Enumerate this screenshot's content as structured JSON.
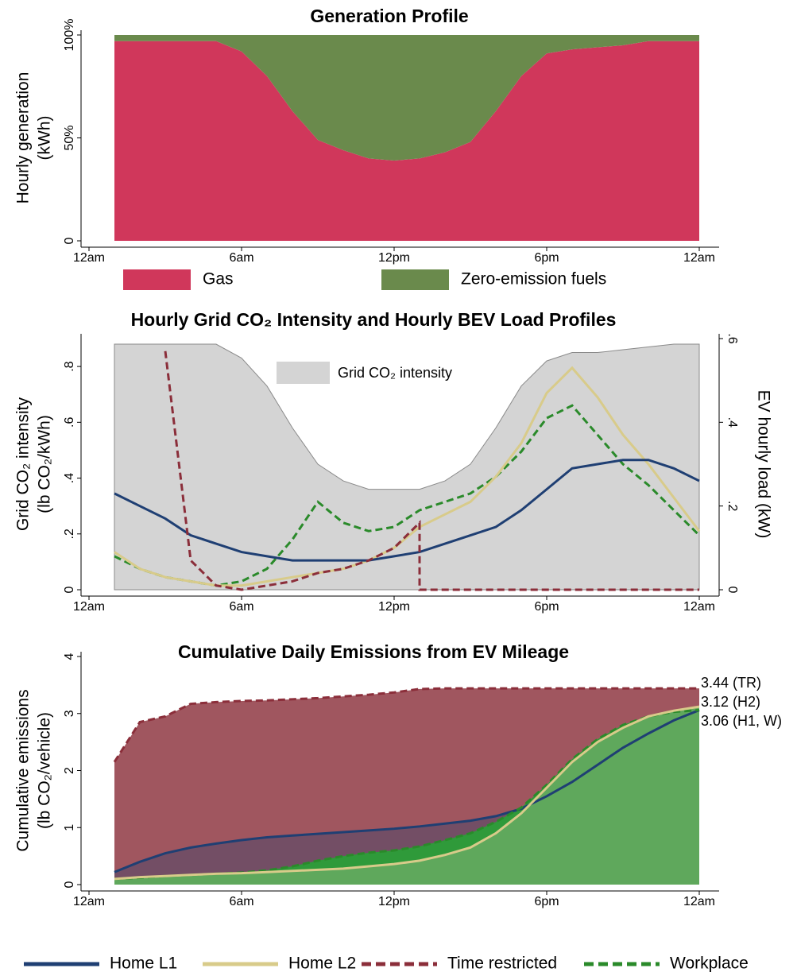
{
  "chart_data": [
    {
      "type": "area",
      "title": "Generation Profile",
      "y_label": [
        "Hourly generation",
        "(kWh)"
      ],
      "x": [
        1,
        2,
        3,
        4,
        5,
        6,
        7,
        8,
        9,
        10,
        11,
        12,
        13,
        14,
        15,
        16,
        17,
        18,
        19,
        20,
        21,
        22,
        23,
        24
      ],
      "xlim": [
        0,
        24
      ],
      "xticks": [
        {
          "value": 0,
          "label": "12am"
        },
        {
          "value": 6,
          "label": "6am"
        },
        {
          "value": 12,
          "label": "12pm"
        },
        {
          "value": 18,
          "label": "6pm"
        },
        {
          "value": 24,
          "label": "12am"
        }
      ],
      "ylim": [
        0,
        100
      ],
      "yticks": [
        0,
        {
          "value": 50,
          "label": "50%"
        },
        {
          "value": 100,
          "label": "100%"
        }
      ],
      "stacked": true,
      "legend": "bottom",
      "series": [
        {
          "name": "Gas",
          "color": "#d0375b",
          "values": [
            97,
            97,
            97,
            97,
            97,
            92,
            80,
            63,
            49,
            44,
            40,
            39,
            40,
            43,
            48,
            63,
            80,
            91,
            93,
            94,
            95,
            97,
            97,
            97
          ]
        },
        {
          "name": "Zero-emission fuels",
          "color": "#6a8a4c",
          "values": [
            3,
            3,
            3,
            3,
            3,
            8,
            20,
            37,
            51,
            56,
            60,
            61,
            60,
            57,
            52,
            37,
            20,
            9,
            7,
            6,
            5,
            3,
            3,
            3
          ]
        }
      ]
    },
    {
      "type": "line",
      "title": "Hourly Grid CO₂ Intensity and Hourly BEV Load Profiles",
      "y_label": [
        "Grid CO₂ intensity",
        "(lb CO₂/kWh)"
      ],
      "y2_label": "EV hourly load (kW)",
      "x": [
        1,
        2,
        3,
        4,
        5,
        6,
        7,
        8,
        9,
        10,
        11,
        12,
        13,
        14,
        15,
        16,
        17,
        18,
        19,
        20,
        21,
        22,
        23,
        24
      ],
      "xlim": [
        0,
        24
      ],
      "xticks": [
        {
          "value": 0,
          "label": "12am"
        },
        {
          "value": 6,
          "label": "6am"
        },
        {
          "value": 12,
          "label": "12pm"
        },
        {
          "value": 18,
          "label": "6pm"
        },
        {
          "value": 24,
          "label": "12am"
        }
      ],
      "ylim": [
        0,
        0.9
      ],
      "yticks": [
        0,
        {
          "value": 0.2,
          "label": ".2"
        },
        {
          "value": 0.4,
          "label": ".4"
        },
        {
          "value": 0.6,
          "label": ".6"
        },
        {
          "value": 0.8,
          "label": ".8"
        }
      ],
      "y2lim": [
        0,
        0.6
      ],
      "y2ticks": [
        0,
        {
          "value": 0.2,
          "label": ".2"
        },
        {
          "value": 0.4,
          "label": ".4"
        },
        {
          "value": 0.6,
          "label": ".6"
        }
      ],
      "legend": "top",
      "series": [
        {
          "name": "Grid CO₂ intensity",
          "style": "area",
          "color": "#d4d4d4",
          "values": [
            0.88,
            0.88,
            0.88,
            0.88,
            0.88,
            0.83,
            0.73,
            0.58,
            0.45,
            0.39,
            0.36,
            0.36,
            0.36,
            0.39,
            0.45,
            0.58,
            0.73,
            0.82,
            0.85,
            0.85,
            0.86,
            0.87,
            0.88,
            0.88
          ]
        },
        {
          "color": "#1f3f73",
          "axis": "y2",
          "values": [
            0.23,
            0.2,
            0.17,
            0.13,
            0.11,
            0.09,
            0.08,
            0.07,
            0.07,
            0.07,
            0.07,
            0.08,
            0.09,
            0.11,
            0.13,
            0.15,
            0.19,
            0.24,
            0.29,
            0.3,
            0.31,
            0.31,
            0.29,
            0.26
          ]
        },
        {
          "color": "#d8cb8a",
          "axis": "y2",
          "values": [
            0.09,
            0.05,
            0.03,
            0.02,
            0.01,
            0.01,
            0.02,
            0.03,
            0.04,
            0.05,
            0.07,
            0.1,
            0.15,
            0.18,
            0.21,
            0.27,
            0.35,
            0.47,
            0.53,
            0.46,
            0.37,
            0.3,
            0.22,
            0.14
          ]
        },
        {
          "color": "#8b2e3a",
          "dash": true,
          "axis": "y2",
          "x": [
            3,
            4,
            5,
            6,
            7,
            8,
            9,
            10,
            11,
            12,
            13,
            13,
            14,
            15,
            16,
            17,
            18,
            19,
            20,
            21,
            22,
            23,
            24
          ],
          "values": [
            0.57,
            0.07,
            0.01,
            0,
            0.01,
            0.02,
            0.04,
            0.05,
            0.07,
            0.1,
            0.16,
            0,
            0,
            0,
            0,
            0,
            0,
            0,
            0,
            0,
            0,
            0,
            0
          ]
        },
        {
          "color": "#2a8a2a",
          "dash": true,
          "axis": "y2",
          "values": [
            0.08,
            0.05,
            0.03,
            0.02,
            0.01,
            0.02,
            0.05,
            0.12,
            0.21,
            0.16,
            0.14,
            0.15,
            0.19,
            0.21,
            0.23,
            0.27,
            0.33,
            0.41,
            0.44,
            0.37,
            0.3,
            0.25,
            0.19,
            0.13
          ]
        }
      ]
    },
    {
      "type": "area",
      "title": "Cumulative Daily Emissions from EV Mileage",
      "y_label": [
        "Cumulative emissions",
        "(lb CO₂/vehicle)"
      ],
      "x": [
        1,
        2,
        3,
        4,
        5,
        6,
        7,
        8,
        9,
        10,
        11,
        12,
        13,
        14,
        15,
        16,
        17,
        18,
        19,
        20,
        21,
        22,
        23,
        24
      ],
      "xlim": [
        0,
        24
      ],
      "xticks": [
        {
          "value": 0,
          "label": "12am"
        },
        {
          "value": 6,
          "label": "6am"
        },
        {
          "value": 12,
          "label": "12pm"
        },
        {
          "value": 18,
          "label": "6pm"
        },
        {
          "value": 24,
          "label": "12am"
        }
      ],
      "ylim": [
        0,
        4
      ],
      "yticks": [
        0,
        1,
        2,
        3,
        4
      ],
      "legend": "bottom",
      "annotations": [
        "3.44 (TR)",
        "3.12 (H2)",
        "3.06 (H1, W)"
      ],
      "series": [
        {
          "name": "Home L1",
          "color": "#1f3f73",
          "fill": "rgba(31,63,115,0.35)",
          "values": [
            0.22,
            0.4,
            0.55,
            0.65,
            0.72,
            0.78,
            0.83,
            0.86,
            0.89,
            0.92,
            0.95,
            0.98,
            1.02,
            1.07,
            1.12,
            1.2,
            1.33,
            1.55,
            1.8,
            2.1,
            2.4,
            2.65,
            2.88,
            3.06
          ]
        },
        {
          "name": "Home L2",
          "color": "#d8cb8a",
          "fill": "#5fa85c",
          "values": [
            0.1,
            0.13,
            0.15,
            0.17,
            0.19,
            0.2,
            0.22,
            0.24,
            0.26,
            0.28,
            0.32,
            0.36,
            0.42,
            0.52,
            0.65,
            0.9,
            1.25,
            1.7,
            2.15,
            2.5,
            2.75,
            2.95,
            3.05,
            3.12
          ]
        },
        {
          "name": "Time restricted",
          "color": "#8b2e3a",
          "fill": "#a0565f",
          "dash": true,
          "values": [
            2.15,
            2.85,
            2.95,
            3.17,
            3.2,
            3.22,
            3.23,
            3.25,
            3.27,
            3.3,
            3.33,
            3.37,
            3.43,
            3.44,
            3.44,
            3.44,
            3.44,
            3.44,
            3.44,
            3.44,
            3.44,
            3.44,
            3.44,
            3.44
          ]
        },
        {
          "name": "Workplace",
          "color": "#2a8a2a",
          "fill": "#2f9a3a",
          "dash": true,
          "values": [
            0.1,
            0.12,
            0.15,
            0.17,
            0.19,
            0.21,
            0.25,
            0.32,
            0.42,
            0.5,
            0.56,
            0.6,
            0.67,
            0.78,
            0.9,
            1.1,
            1.35,
            1.75,
            2.2,
            2.55,
            2.8,
            2.95,
            3.03,
            3.06
          ]
        }
      ]
    }
  ]
}
